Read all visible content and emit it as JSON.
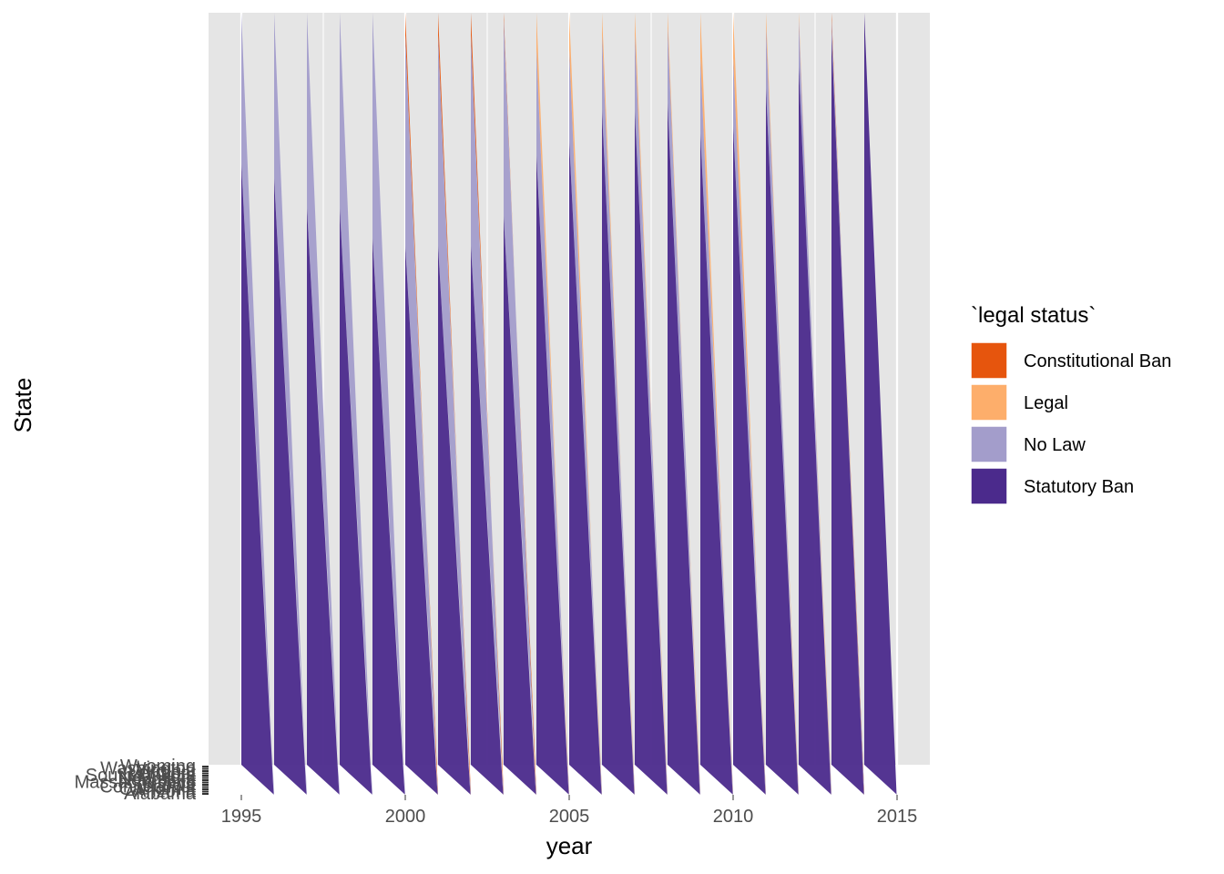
{
  "chart_data": {
    "type": "area",
    "title": "",
    "xlabel": "year",
    "ylabel": "State",
    "xlim": [
      1994,
      2016
    ],
    "x_ticks": [
      1995,
      2000,
      2005,
      2010,
      2015
    ],
    "x_tick_labels": [
      "1995",
      "2000",
      "2005",
      "2010",
      "2015"
    ],
    "y_tick_labels": [
      "Wyoming",
      "Washington",
      "Virginia",
      "Vermont",
      "South Dakota",
      "New York",
      "Nebraska",
      "Massachusetts",
      "Iowa",
      "Connecticut",
      "California",
      "Arizona",
      "Alabama"
    ],
    "grid": true,
    "legend": {
      "title": "`legal status`",
      "placement": "right",
      "entries": [
        {
          "label": "Constitutional Ban",
          "color": "#E6550D"
        },
        {
          "label": "Legal",
          "color": "#FDAE6B"
        },
        {
          "label": "No Law",
          "color": "#A39DCB"
        },
        {
          "label": "Statutory Ban",
          "color": "#4B2A8C"
        }
      ]
    },
    "colors": {
      "Constitutional Ban": "#E6550D",
      "Legal": "#FDAE6B",
      "No Law": "#A39DCB",
      "Statutory Ban": "#4B2A8C"
    },
    "years": [
      1995,
      1996,
      1997,
      1998,
      1999,
      2000,
      2001,
      2002,
      2003,
      2004,
      2005,
      2006,
      2007,
      2008,
      2009,
      2010,
      2011,
      2012,
      2013,
      2014,
      2015
    ],
    "status_share_percent": {
      "Constitutional Ban": [
        0,
        0,
        0,
        0,
        0,
        3,
        3,
        3,
        1,
        0,
        0,
        0,
        0,
        0,
        0,
        0,
        0,
        0,
        1,
        0,
        0
      ],
      "Legal": [
        0,
        0,
        0,
        0,
        0,
        0,
        0,
        0,
        0,
        5,
        5,
        3,
        3,
        2,
        6,
        6,
        2,
        1,
        0,
        0,
        0
      ],
      "No Law": [
        20,
        22,
        26,
        26,
        30,
        28,
        28,
        28,
        26,
        14,
        12,
        10,
        10,
        10,
        10,
        9,
        8,
        6,
        2,
        0,
        0
      ],
      "Statutory Ban": [
        80,
        78,
        74,
        74,
        70,
        69,
        69,
        69,
        73,
        81,
        83,
        87,
        87,
        88,
        84,
        85,
        90,
        93,
        97,
        100,
        100
      ]
    }
  }
}
